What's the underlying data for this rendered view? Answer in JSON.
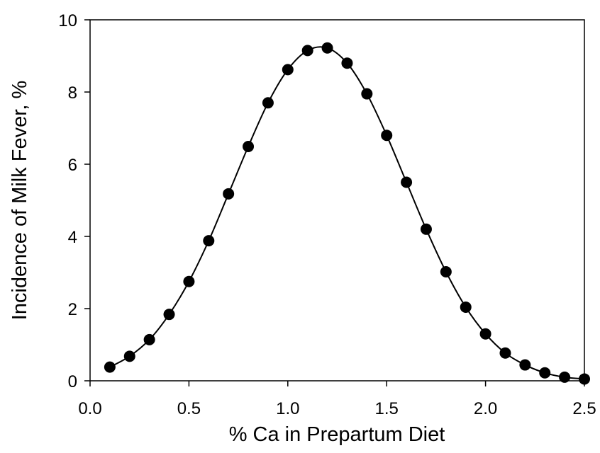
{
  "chart_data": {
    "type": "line",
    "title": "",
    "xlabel": "% Ca in Prepartum Diet",
    "ylabel": "Incidence of Milk Fever, %",
    "xlim": [
      0.0,
      2.5
    ],
    "ylim": [
      0,
      10
    ],
    "x_ticks": [
      "0.0",
      "0.5",
      "1.0",
      "1.5",
      "2.0",
      "2.5"
    ],
    "y_ticks": [
      "0",
      "2",
      "4",
      "6",
      "8",
      "10"
    ],
    "grid": false,
    "legend": "none",
    "series": [
      {
        "x": [
          0.1,
          0.2,
          0.3,
          0.4,
          0.5,
          0.6,
          0.7,
          0.8,
          0.9,
          1.0,
          1.1,
          1.2,
          1.3,
          1.4,
          1.5,
          1.6,
          1.7,
          1.8,
          1.9,
          2.0,
          2.1,
          2.2,
          2.3,
          2.4,
          2.5
        ],
        "y": [
          0.38,
          0.68,
          1.14,
          1.84,
          2.75,
          3.88,
          5.18,
          6.49,
          7.7,
          8.62,
          9.15,
          9.22,
          8.8,
          7.95,
          6.8,
          5.5,
          4.2,
          3.02,
          2.04,
          1.3,
          0.77,
          0.44,
          0.22,
          0.1,
          0.05
        ]
      }
    ],
    "colors": {
      "line": "#000000",
      "marker": "#000000",
      "frame": "#000000"
    }
  }
}
